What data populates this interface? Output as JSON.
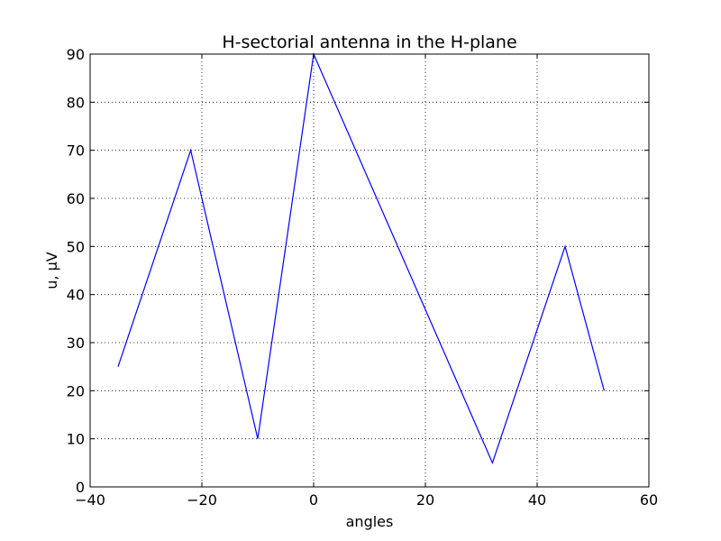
{
  "chart_data": {
    "type": "line",
    "title": "H-sectorial antenna in the H-plane",
    "xlabel": "angles",
    "ylabel": "u, µV",
    "xlim": [
      -40,
      60
    ],
    "ylim": [
      0,
      90
    ],
    "xticks": [
      -40,
      -20,
      0,
      20,
      40,
      60
    ],
    "xtick_labels": [
      "−40",
      "−20",
      "0",
      "20",
      "40",
      "60"
    ],
    "yticks": [
      0,
      10,
      20,
      30,
      40,
      50,
      60,
      70,
      80,
      90
    ],
    "ytick_labels": [
      "0",
      "10",
      "20",
      "30",
      "40",
      "50",
      "60",
      "70",
      "80",
      "90"
    ],
    "grid": true,
    "series": [
      {
        "color": "#0000ff",
        "x": [
          -35,
          -22,
          -10,
          0,
          32,
          45,
          52
        ],
        "y": [
          25,
          70,
          10,
          90,
          5,
          50,
          20
        ]
      }
    ]
  }
}
